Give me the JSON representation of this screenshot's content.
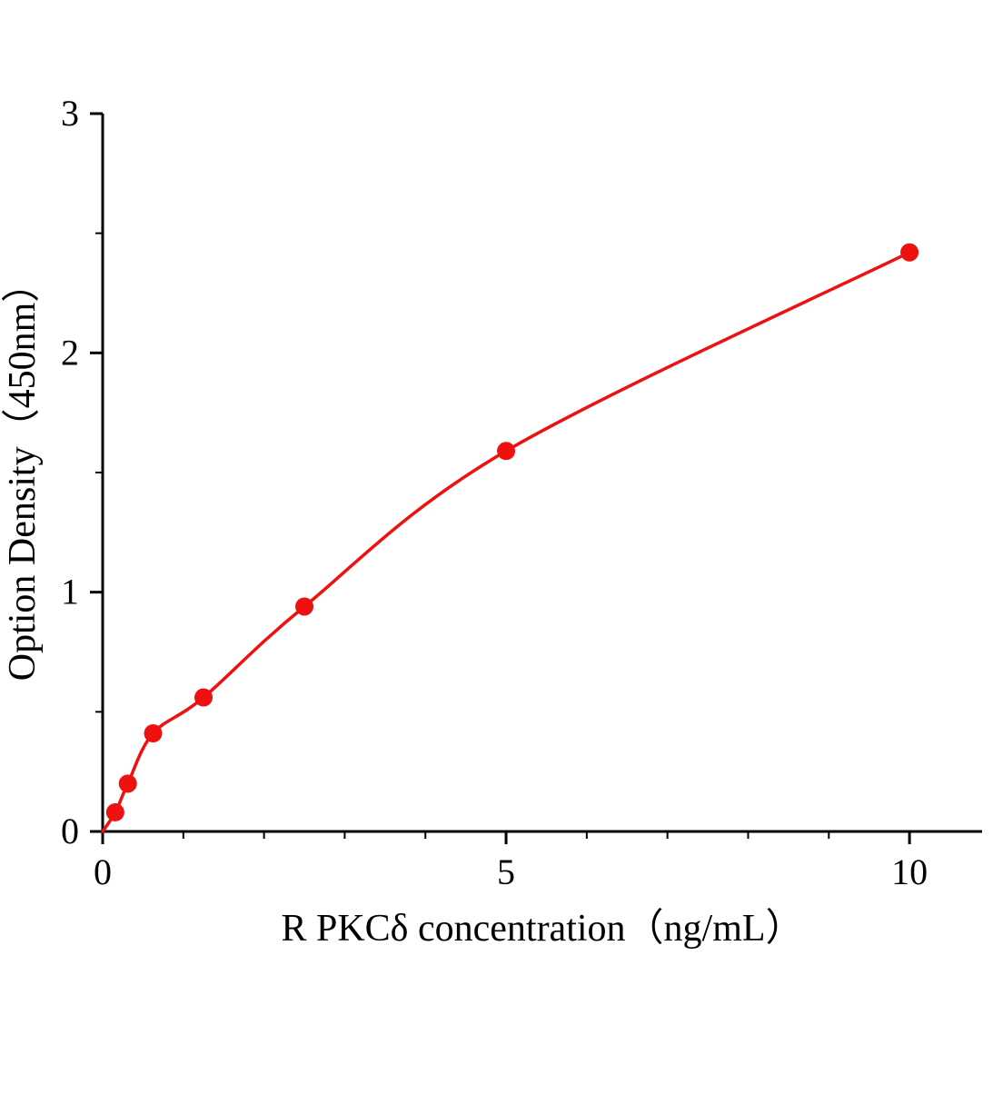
{
  "chart_data": {
    "type": "scatter",
    "title": "",
    "xlabel": "R PKCδ  concentration（ng/mL）",
    "ylabel": "Option Density（450nm）",
    "x": [
      0.156,
      0.312,
      0.625,
      1.25,
      2.5,
      5,
      10
    ],
    "y": [
      0.08,
      0.2,
      0.41,
      0.56,
      0.94,
      1.59,
      2.42
    ],
    "curve_start": [
      0,
      0
    ],
    "xlim": [
      0,
      10.9
    ],
    "ylim": [
      0,
      3
    ],
    "x_major_ticks": [
      0,
      5,
      10
    ],
    "x_tick_labels": [
      "0",
      "5",
      "10"
    ],
    "x_minor_ticks": [
      1,
      2,
      3,
      4,
      6,
      7,
      8,
      9
    ],
    "y_major_ticks": [
      0,
      1,
      2,
      3
    ],
    "y_tick_labels": [
      "0",
      "1",
      "2",
      "3"
    ],
    "y_minor_ticks": [
      0.5,
      1.5,
      2.5
    ],
    "grid": false,
    "legend": "none",
    "marker": "circle",
    "colors": {
      "series": "#ef1010",
      "axis": "#000000",
      "background": "#ffffff"
    }
  }
}
